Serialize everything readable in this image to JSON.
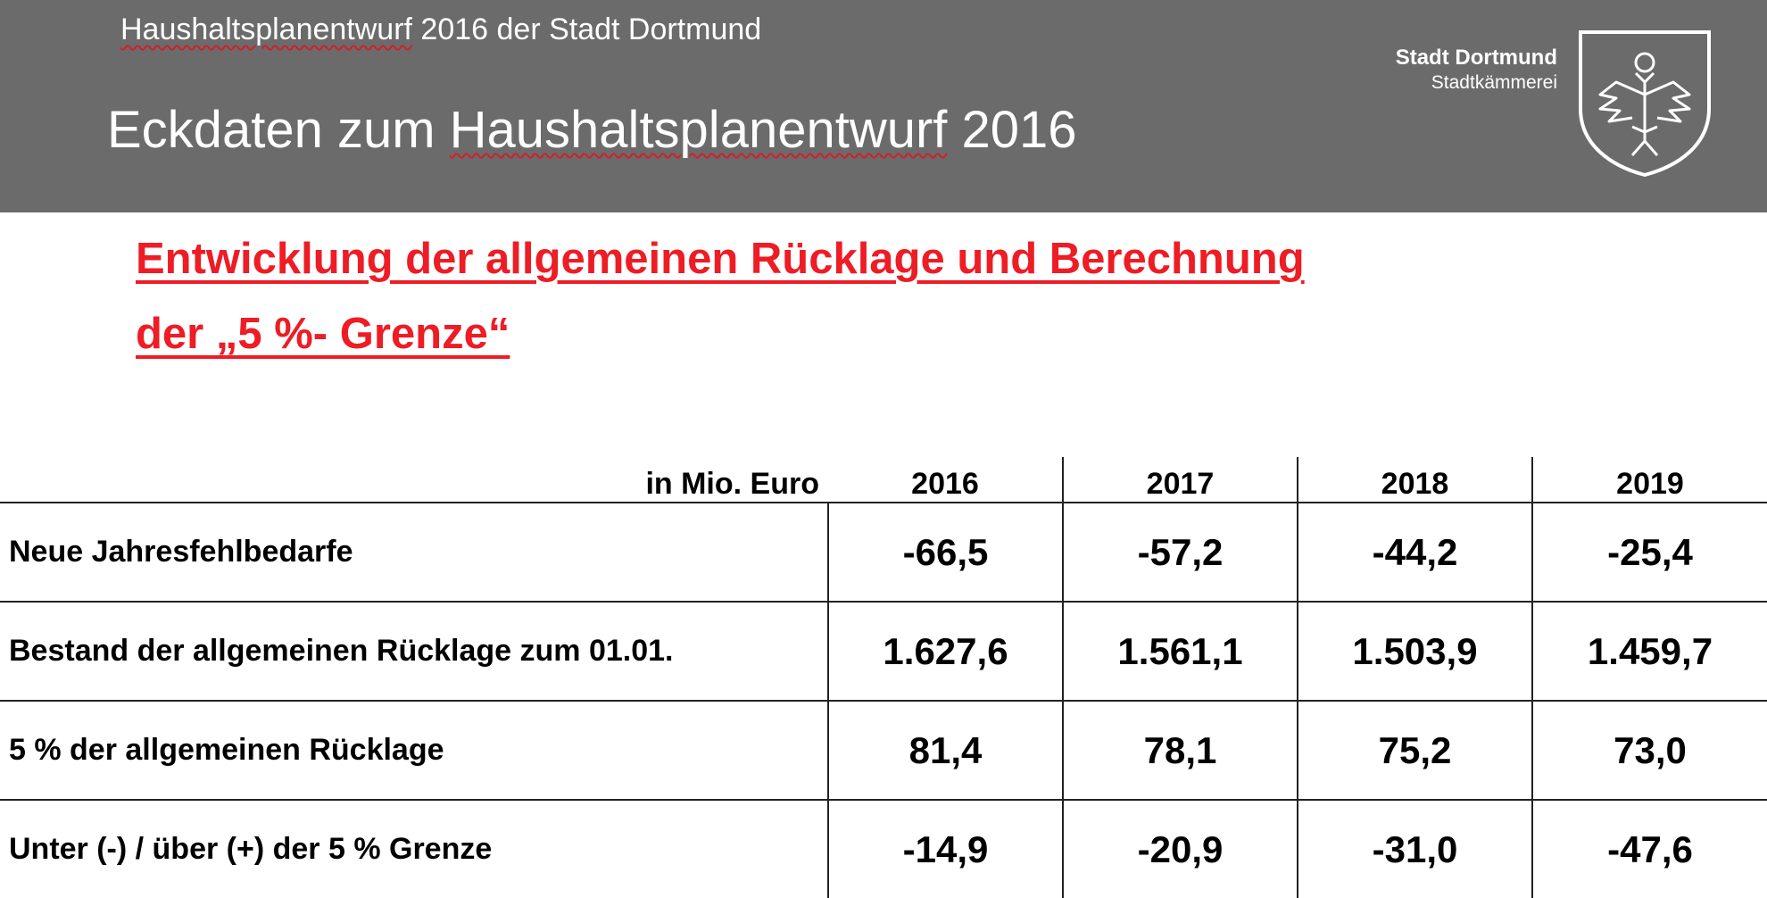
{
  "header": {
    "subtitle_prefix": "Haushaltsplanentwurf",
    "subtitle_rest": " 2016 der Stadt Dortmund",
    "title_prefix": "Eckdaten zum ",
    "title_underlined": "Haushaltsplanentwurf",
    "title_rest": " 2016",
    "org_name": "Stadt Dortmund",
    "org_dept": "Stadtkämmerei",
    "logo_icon": "eagle-crest-icon"
  },
  "heading": {
    "line1": "Entwicklung der allgemeinen Rücklage und Berechnung",
    "line2": "der „5 %- Grenze“",
    "color": "#ee1c25"
  },
  "table": {
    "unit_label": "in Mio. Euro",
    "years": [
      "2016",
      "2017",
      "2018",
      "2019"
    ],
    "rows": [
      {
        "label": "Neue Jahresfehlbedarfe",
        "values": [
          "-66,5",
          "-57,2",
          "-44,2",
          "-25,4"
        ]
      },
      {
        "label": "Bestand der allgemeinen Rücklage zum 01.01.",
        "values": [
          "1.627,6",
          "1.561,1",
          "1.503,9",
          "1.459,7"
        ]
      },
      {
        "label": "5 % der allgemeinen Rücklage",
        "values": [
          "81,4",
          "78,1",
          "75,2",
          "73,0"
        ]
      },
      {
        "label": "Unter (-) / über (+) der 5 % Grenze",
        "values": [
          "-14,9",
          "-20,9",
          "-31,0",
          "-47,6"
        ]
      }
    ]
  }
}
